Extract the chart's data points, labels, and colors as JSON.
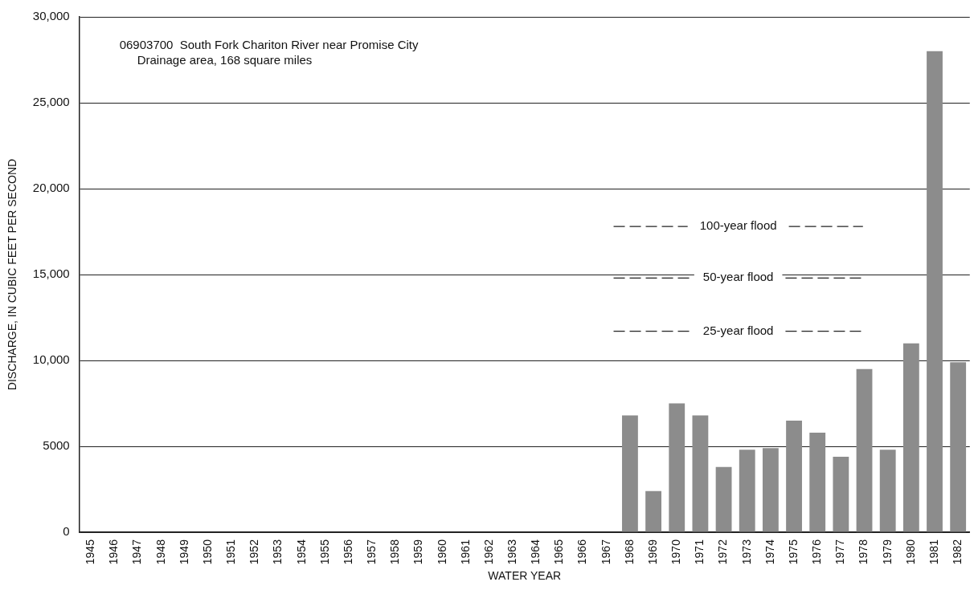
{
  "chart_data": {
    "type": "bar",
    "xlabel": "WATER YEAR",
    "ylabel": "DISCHARGE, IN CUBIC FEET PER SECOND",
    "annotations": [
      "06903700  South Fork Chariton River near Promise City",
      "Drainage area, 168 square miles"
    ],
    "categories": [
      "1945",
      "1946",
      "1947",
      "1948",
      "1949",
      "1950",
      "1951",
      "1952",
      "1953",
      "1954",
      "1955",
      "1956",
      "1957",
      "1958",
      "1959",
      "1960",
      "1961",
      "1962",
      "1963",
      "1964",
      "1965",
      "1966",
      "1967",
      "1968",
      "1969",
      "1970",
      "1971",
      "1972",
      "1973",
      "1974",
      "1975",
      "1976",
      "1977",
      "1978",
      "1979",
      "1980",
      "1981",
      "1982"
    ],
    "values": [
      null,
      null,
      null,
      null,
      null,
      null,
      null,
      null,
      null,
      null,
      null,
      null,
      null,
      null,
      null,
      null,
      null,
      null,
      null,
      null,
      null,
      null,
      null,
      6800,
      2400,
      7500,
      6800,
      3800,
      4800,
      4900,
      6500,
      5800,
      4400,
      9500,
      4800,
      11000,
      28000,
      9900
    ],
    "color": "#8c8c8c",
    "ylim": [
      0,
      30000
    ],
    "yticks": [
      0,
      5000,
      {
        "value": 10000,
        "label": "10,000"
      },
      {
        "value": 15000,
        "label": "15,000"
      },
      {
        "value": 20000,
        "label": "20,000"
      },
      {
        "value": 25000,
        "label": "25,000"
      },
      {
        "value": 30000,
        "label": "30,000"
      }
    ],
    "grid": "y",
    "ref_lines": [
      {
        "axis": "y",
        "value": 17800,
        "label": "100-year flood",
        "line_style": "dashed"
      },
      {
        "axis": "y",
        "value": 14800,
        "label": "50-year flood",
        "line_style": "dashed"
      },
      {
        "axis": "y",
        "value": 11700,
        "label": "25-year flood",
        "line_style": "dashed"
      }
    ]
  }
}
